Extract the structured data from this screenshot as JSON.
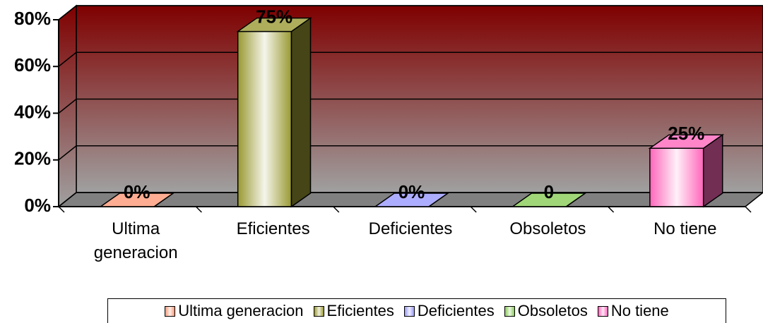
{
  "chart_data": {
    "type": "bar3d",
    "categories": [
      "Ultima generacion",
      "Eficientes",
      "Deficientes",
      "Obsoletos",
      "No tiene"
    ],
    "values": [
      0,
      75,
      0,
      0,
      25
    ],
    "value_labels": [
      "0%",
      "75%",
      "0%",
      "0",
      "25%"
    ],
    "colors": [
      "#ff9977",
      "#999933",
      "#9999ff",
      "#88cc55",
      "#ff66bb"
    ],
    "ylim": [
      0,
      80
    ],
    "yticks": [
      {
        "value": 0,
        "label": "0%"
      },
      {
        "value": 20,
        "label": "20%"
      },
      {
        "value": 40,
        "label": "40%"
      },
      {
        "value": 60,
        "label": "60%"
      },
      {
        "value": 80,
        "label": "80%"
      }
    ],
    "grid": true,
    "legend": "bottom"
  }
}
